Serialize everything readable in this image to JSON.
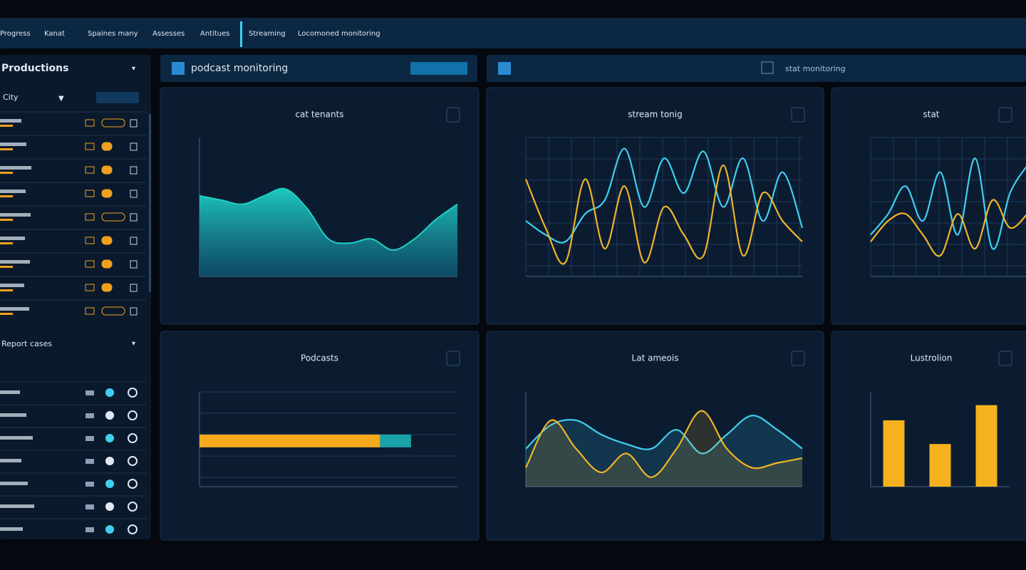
{
  "nav": [
    "Progress",
    "Kanat",
    "Spaines many",
    "Assesses",
    "Antitues",
    "Streaming",
    "Locomoned monitoring"
  ],
  "sidebar": {
    "title": "Productions",
    "filter": "City",
    "section": "Report cases"
  },
  "headers": [
    "podcast monitoring",
    "stat monitoring"
  ],
  "panels": [
    {
      "title": "cat tenants",
      "chart": {
        "type": "area",
        "color": "#1fd1c4",
        "ylim": [
          0,
          100
        ],
        "values": [
          58,
          55,
          52,
          58,
          63,
          49,
          27,
          24,
          27,
          19,
          27,
          41,
          52
        ]
      }
    },
    {
      "title": "stream tonig",
      "chart": {
        "type": "line",
        "grid": true,
        "ylim": [
          0,
          100
        ],
        "series": [
          {
            "color": "#3fd0f0",
            "values": [
              40,
              30,
              25,
              45,
              55,
              92,
              50,
              85,
              60,
              90,
              50,
              85,
              40,
              75,
              35
            ]
          },
          {
            "color": "#f0b429",
            "values": [
              70,
              35,
              10,
              70,
              20,
              65,
              10,
              50,
              30,
              15,
              80,
              15,
              60,
              40,
              25
            ]
          }
        ]
      }
    },
    {
      "title": "stat",
      "chart": {
        "type": "line",
        "grid": true,
        "ylim": [
          0,
          100
        ],
        "series": [
          {
            "color": "#3fd0f0",
            "values": [
              30,
              45,
              65,
              40,
              75,
              30,
              85,
              20,
              60,
              80
            ]
          },
          {
            "color": "#f0b429",
            "values": [
              25,
              40,
              45,
              30,
              15,
              45,
              20,
              55,
              35,
              45
            ]
          }
        ]
      }
    },
    {
      "title": "Podcasts",
      "chart": {
        "type": "hbar",
        "xlim": [
          0,
          100
        ],
        "series": [
          {
            "color": "#f5a91d",
            "values": [
              70
            ]
          },
          {
            "color": "#1aa3a8",
            "values": [
              12
            ]
          }
        ]
      }
    },
    {
      "title": "Lat ameois",
      "chart": {
        "type": "line",
        "fill": true,
        "ylim": [
          0,
          100
        ],
        "series": [
          {
            "color": "#3fd0f0",
            "values": [
              40,
              65,
              70,
              55,
              45,
              40,
              60,
              35,
              55,
              75,
              60,
              40
            ]
          },
          {
            "color": "#f0b429",
            "values": [
              20,
              70,
              40,
              15,
              35,
              10,
              40,
              80,
              40,
              20,
              25,
              30
            ]
          }
        ]
      }
    },
    {
      "title": "Lustrolion",
      "chart": {
        "type": "bar",
        "color": "#f5b21e",
        "ylim": [
          0,
          100
        ],
        "values": [
          70,
          45,
          86
        ]
      }
    }
  ]
}
